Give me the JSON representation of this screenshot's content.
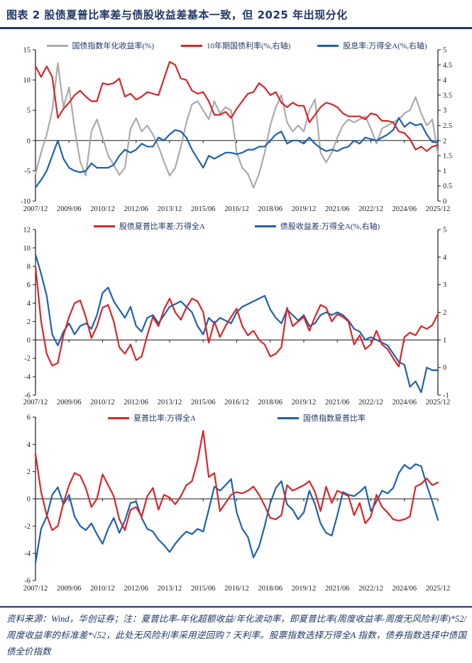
{
  "header": {
    "figure_label": "图表 2",
    "title": "图表 2  股债夏普比率差与债股收益差基本一致，但 2025 年出现分化"
  },
  "footer": {
    "source_note": "资料来源：Wind，华创证券；注：夏普比率-年化超额收益/年化波动率，即夏普比率(周度收益率-周度无风险利率)*52/周度收益率的标准差*√52，此处无风险利率采用逆回购 7 天利率。股票指数选择万得全A 指数，债券指数选择中债国债全价指数"
  },
  "colors": {
    "red": "#D7262B",
    "blue": "#1F61AC",
    "gray": "#ABABAB",
    "navy": "#1F3864",
    "axis": "#1a1a1a"
  },
  "chart_data": [
    {
      "type": "line",
      "x_start": "2007/12",
      "x_end": "2025/12",
      "x_interval": "quarterly",
      "x_tick_labels": [
        "2007/12",
        "2009/06",
        "2010/12",
        "2012/06",
        "2013/12",
        "2015/06",
        "2016/12",
        "2018/06",
        "2019/12",
        "2021/06",
        "2022/12",
        "2024/06",
        "2025/12"
      ],
      "left_axis": {
        "min": -10,
        "max": 15,
        "step": 5
      },
      "right_axis": {
        "min": 0,
        "max": 5,
        "step": 0.5
      },
      "grid": "off",
      "legend_position": "top-center",
      "series": [
        {
          "name": "国债指数年化收益率(%)",
          "color_key": "gray",
          "axis": "left",
          "values": [
            -5.5,
            -2.0,
            1.0,
            5.0,
            12.8,
            5.5,
            8.8,
            2.0,
            -3.5,
            -5.8,
            1.5,
            3.5,
            0.5,
            -2.5,
            -4.0,
            -5.7,
            -4.5,
            2.0,
            3.7,
            1.5,
            2.5,
            1.0,
            -1.0,
            -3.5,
            -5.8,
            -4.5,
            -1.0,
            3.0,
            6.0,
            6.5,
            5.0,
            3.5,
            6.5,
            4.5,
            5.5,
            5.0,
            -2.0,
            -4.5,
            -5.5,
            -7.8,
            -5.5,
            -2.0,
            2.5,
            5.5,
            7.5,
            3.0,
            1.5,
            2.5,
            1.5,
            5.0,
            6.8,
            -2.0,
            -3.6,
            -2.0,
            0.5,
            2.5,
            3.5,
            3.0,
            3.5,
            4.0,
            2.0,
            -0.5,
            2.0,
            2.5,
            3.0,
            3.5,
            4.5,
            5.0,
            7.2,
            4.5,
            2.5,
            3.5,
            -2.3
          ]
        },
        {
          "name": "10年期国债利率(%,右轴)",
          "color_key": "red",
          "axis": "right",
          "values": [
            4.46,
            4.1,
            4.45,
            4.1,
            2.75,
            3.05,
            3.25,
            3.5,
            3.65,
            3.45,
            3.3,
            3.3,
            3.9,
            3.85,
            3.9,
            4.05,
            3.45,
            3.55,
            3.35,
            3.45,
            3.6,
            3.55,
            3.5,
            4.05,
            4.6,
            4.5,
            4.05,
            4.0,
            3.65,
            3.55,
            3.6,
            3.3,
            2.85,
            2.85,
            2.95,
            2.75,
            3.05,
            3.3,
            3.55,
            3.6,
            3.9,
            3.75,
            3.5,
            3.6,
            3.25,
            3.1,
            3.25,
            3.15,
            3.15,
            2.6,
            2.85,
            3.1,
            3.25,
            3.2,
            3.1,
            2.9,
            2.8,
            2.8,
            2.8,
            2.7,
            2.9,
            2.85,
            2.65,
            2.65,
            2.6,
            2.3,
            2.25,
            2.05,
            1.7,
            1.8,
            1.65,
            1.8,
            1.85
          ]
        },
        {
          "name": "股息率:万得全A(%,右轴)",
          "color_key": "blue",
          "axis": "right",
          "values": [
            0.45,
            0.7,
            1.0,
            1.5,
            2.0,
            1.4,
            1.1,
            1.0,
            0.95,
            1.0,
            1.25,
            1.1,
            1.1,
            1.1,
            1.2,
            1.5,
            1.7,
            1.6,
            1.7,
            1.9,
            1.8,
            1.8,
            2.1,
            2.0,
            2.2,
            2.35,
            2.3,
            2.1,
            1.7,
            1.4,
            1.1,
            1.5,
            1.4,
            1.5,
            1.6,
            1.6,
            1.55,
            1.6,
            1.7,
            1.7,
            1.8,
            1.8,
            2.0,
            2.2,
            2.3,
            1.9,
            2.0,
            2.0,
            1.9,
            2.1,
            1.9,
            1.75,
            1.65,
            1.7,
            1.65,
            1.75,
            1.8,
            2.0,
            1.9,
            2.1,
            2.05,
            2.0,
            2.1,
            2.2,
            2.35,
            2.75,
            2.45,
            2.6,
            2.5,
            2.55,
            2.2,
            1.95,
            1.95
          ]
        }
      ]
    },
    {
      "type": "line",
      "x_start": "2007/12",
      "x_end": "2025/12",
      "x_interval": "quarterly",
      "x_tick_labels": [
        "2007/12",
        "2009/06",
        "2010/12",
        "2012/06",
        "2013/12",
        "2015/06",
        "2016/12",
        "2018/06",
        "2019/12",
        "2021/06",
        "2022/12",
        "2024/06",
        "2025/12"
      ],
      "left_axis": {
        "min": -6,
        "max": 12,
        "step": 2
      },
      "right_axis": {
        "min": -1,
        "max": 5,
        "step": 1
      },
      "grid": "off",
      "legend_position": "top-center",
      "series": [
        {
          "name": "股债夏普比率差:万得全A",
          "color_key": "red",
          "axis": "left",
          "values": [
            8.0,
            2.0,
            -1.5,
            -2.8,
            -2.5,
            0.5,
            2.5,
            4.0,
            4.3,
            2.5,
            0.2,
            1.5,
            3.5,
            3.8,
            2.0,
            -0.8,
            -1.5,
            -0.5,
            -2.2,
            -1.8,
            0.5,
            2.5,
            1.5,
            3.3,
            4.5,
            3.0,
            2.2,
            3.5,
            4.5,
            4.2,
            3.0,
            -0.3,
            2.0,
            0.3,
            1.5,
            2.5,
            3.4,
            1.5,
            0.5,
            1.0,
            0.0,
            -0.5,
            -1.8,
            -1.5,
            -0.8,
            3.5,
            1.5,
            2.0,
            2.5,
            1.0,
            2.5,
            3.8,
            3.5,
            2.0,
            2.8,
            2.5,
            2.0,
            -0.5,
            0.5,
            -1.0,
            -0.5,
            1.0,
            -0.5,
            -1.0,
            -2.0,
            -2.9,
            0.3,
            0.8,
            0.5,
            1.5,
            1.2,
            1.6,
            2.8
          ]
        },
        {
          "name": "债股收益差:万得全A(%,右轴)",
          "color_key": "blue",
          "axis": "right",
          "values": [
            4.1,
            3.4,
            2.6,
            1.2,
            0.8,
            1.3,
            1.6,
            1.2,
            1.5,
            1.6,
            1.4,
            1.9,
            2.7,
            2.9,
            2.4,
            2.1,
            1.8,
            2.2,
            1.5,
            1.3,
            1.8,
            1.9,
            1.6,
            1.9,
            2.2,
            2.3,
            2.4,
            2.2,
            2.0,
            1.5,
            1.2,
            1.8,
            1.6,
            1.8,
            1.7,
            1.6,
            2.0,
            2.2,
            2.3,
            2.4,
            2.5,
            2.6,
            2.1,
            1.8,
            1.6,
            2.1,
            1.9,
            1.7,
            1.9,
            1.5,
            1.6,
            1.9,
            2.0,
            1.9,
            2.0,
            1.9,
            1.7,
            1.4,
            1.3,
            1.0,
            1.1,
            1.0,
            0.9,
            0.8,
            0.5,
            0.2,
            0.1,
            -0.7,
            -0.5,
            -0.9,
            0.0,
            -0.1,
            -0.1
          ]
        }
      ]
    },
    {
      "type": "line",
      "x_start": "2007/12",
      "x_end": "2025/12",
      "x_interval": "quarterly",
      "x_tick_labels": [
        "2007/12",
        "2009/06",
        "2010/12",
        "2012/06",
        "2013/12",
        "2015/06",
        "2016/12",
        "2018/06",
        "2019/12",
        "2021/06",
        "2022/12",
        "2024/06",
        "2025/12"
      ],
      "left_axis": {
        "min": -6,
        "max": 6,
        "step": 2
      },
      "right_axis": null,
      "grid": "off",
      "legend_position": "top-center",
      "series": [
        {
          "name": "夏普比率:万得全A",
          "color_key": "red",
          "axis": "left",
          "values": [
            3.3,
            0.5,
            -1.2,
            -2.3,
            -2.0,
            -0.3,
            1.0,
            1.9,
            1.7,
            0.8,
            -0.6,
            0.0,
            1.8,
            1.0,
            0.2,
            -1.5,
            -2.3,
            -0.8,
            -0.6,
            -1.3,
            0.2,
            0.8,
            -0.8,
            0.3,
            0.1,
            -0.4,
            0.2,
            1.0,
            1.3,
            2.8,
            5.0,
            1.6,
            1.9,
            -0.9,
            -0.3,
            0.3,
            0.5,
            0.4,
            0.6,
            0.9,
            0.3,
            -0.5,
            -1.4,
            -1.5,
            -1.2,
            1.0,
            0.6,
            0.8,
            1.0,
            1.3,
            0.5,
            -0.9,
            0.9,
            -0.3,
            0.6,
            0.4,
            0.2,
            -1.2,
            -0.3,
            -1.8,
            -1.3,
            0.3,
            -0.6,
            -1.0,
            -1.5,
            -1.6,
            -1.5,
            -1.3,
            0.9,
            1.1,
            1.5,
            1.0,
            1.2
          ]
        },
        {
          "name": "国债指数夏普比率",
          "color_key": "blue",
          "axis": "left",
          "values": [
            -4.7,
            -2.2,
            -1.3,
            0.3,
            0.85,
            -0.4,
            0.3,
            -1.3,
            -2.0,
            -2.3,
            -1.8,
            -2.6,
            -3.3,
            -2.2,
            -1.4,
            -2.5,
            -1.6,
            -0.3,
            -0.2,
            -1.4,
            -2.2,
            -2.4,
            -3.0,
            -3.4,
            -3.9,
            -3.3,
            -2.8,
            -2.4,
            -2.6,
            -2.2,
            -2.4,
            -0.8,
            0.9,
            0.6,
            1.0,
            1.45,
            -1.0,
            -2.2,
            -2.8,
            -4.3,
            -3.5,
            -2.0,
            -0.3,
            0.8,
            1.3,
            -0.4,
            -0.8,
            -1.5,
            -1.0,
            0.6,
            -0.4,
            -1.8,
            -2.5,
            -2.7,
            -1.2,
            0.5,
            0.3,
            0.2,
            0.5,
            0.9,
            -0.9,
            -0.2,
            0.6,
            0.4,
            0.8,
            1.9,
            2.5,
            2.2,
            2.55,
            2.4,
            1.0,
            -0.2,
            -1.55
          ]
        }
      ]
    }
  ]
}
